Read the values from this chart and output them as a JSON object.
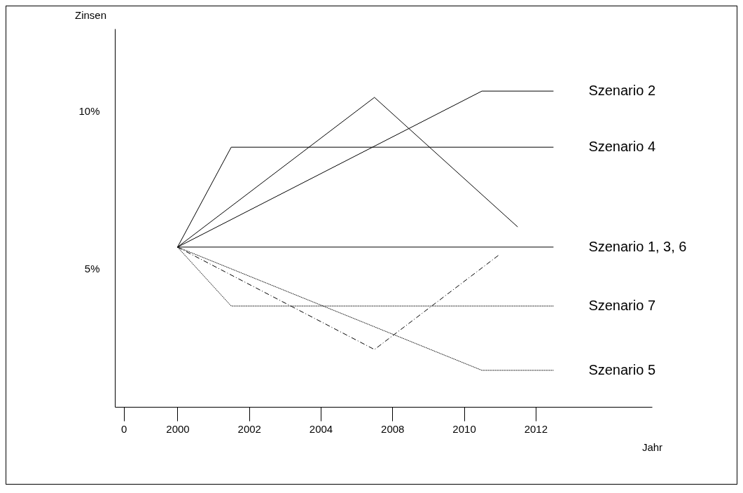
{
  "chart_data": {
    "type": "line",
    "xlabel": "Jahr",
    "ylabel": "Zinsen",
    "categories": [
      "0",
      null,
      null,
      "2000",
      null,
      null,
      null,
      "2002",
      null,
      null,
      null,
      "2004",
      null,
      null,
      null,
      "2008",
      null,
      null,
      null,
      "2010",
      null,
      null,
      null,
      "2012",
      null,
      null,
      null,
      null,
      null,
      null
    ],
    "ylim": [
      0.6,
      12.6
    ],
    "yticks": [
      {
        "value": 5,
        "label": "5%"
      },
      {
        "value": 10,
        "label": "10%"
      }
    ],
    "grid": false,
    "marker": "none",
    "series": [
      {
        "name": "Szenario 2",
        "color": "#000000",
        "line_style": "solid",
        "values": [
          null,
          null,
          null,
          5.67,
          null,
          null,
          null,
          null,
          null,
          null,
          null,
          null,
          null,
          null,
          null,
          null,
          null,
          null,
          null,
          null,
          10.62,
          null,
          null,
          null,
          10.62,
          null,
          null,
          null,
          null,
          null
        ]
      },
      {
        "name": "Szenario 4",
        "color": "#000000",
        "line_style": "solid",
        "values": [
          null,
          null,
          null,
          5.67,
          null,
          null,
          8.84,
          null,
          null,
          null,
          null,
          null,
          null,
          null,
          null,
          null,
          null,
          null,
          null,
          null,
          null,
          null,
          null,
          null,
          8.84,
          null,
          null,
          null,
          null,
          null
        ]
      },
      {
        "color": "#000000",
        "line_style": "solid",
        "values": [
          null,
          null,
          null,
          5.67,
          null,
          null,
          null,
          null,
          null,
          null,
          null,
          null,
          null,
          null,
          10.42,
          null,
          null,
          null,
          null,
          null,
          null,
          null,
          6.31,
          null,
          null,
          null,
          null,
          null,
          null,
          null
        ]
      },
      {
        "name": "Szenario 1, 3, 6",
        "color": "#000000",
        "line_style": "solid",
        "values": [
          null,
          null,
          null,
          5.67,
          null,
          null,
          null,
          null,
          null,
          null,
          null,
          null,
          null,
          null,
          null,
          null,
          null,
          null,
          null,
          null,
          null,
          null,
          null,
          null,
          5.67,
          null,
          null,
          null,
          null,
          null
        ]
      },
      {
        "name": "Szenario 7",
        "color": "#000000",
        "line_style": "dotted",
        "values": [
          null,
          null,
          null,
          5.67,
          null,
          null,
          3.8,
          null,
          null,
          null,
          null,
          null,
          null,
          null,
          null,
          null,
          null,
          null,
          null,
          null,
          null,
          null,
          null,
          null,
          3.8,
          null,
          null,
          null,
          null,
          null
        ]
      },
      {
        "name": "Szenario 5",
        "color": "#000000",
        "line_style": "dotted",
        "values": [
          null,
          null,
          null,
          5.67,
          null,
          null,
          null,
          null,
          null,
          null,
          null,
          null,
          null,
          null,
          null,
          null,
          null,
          null,
          null,
          null,
          1.76,
          null,
          null,
          null,
          1.76,
          null,
          null,
          null,
          null,
          null
        ]
      },
      {
        "color": "#000000",
        "line_style": "dashed",
        "values": [
          null,
          null,
          null,
          5.67,
          null,
          null,
          null,
          null,
          null,
          null,
          null,
          null,
          null,
          null,
          2.42,
          null,
          null,
          null,
          null,
          null,
          null,
          5.44,
          null,
          null,
          null,
          null,
          null,
          null,
          null,
          null
        ]
      }
    ]
  }
}
